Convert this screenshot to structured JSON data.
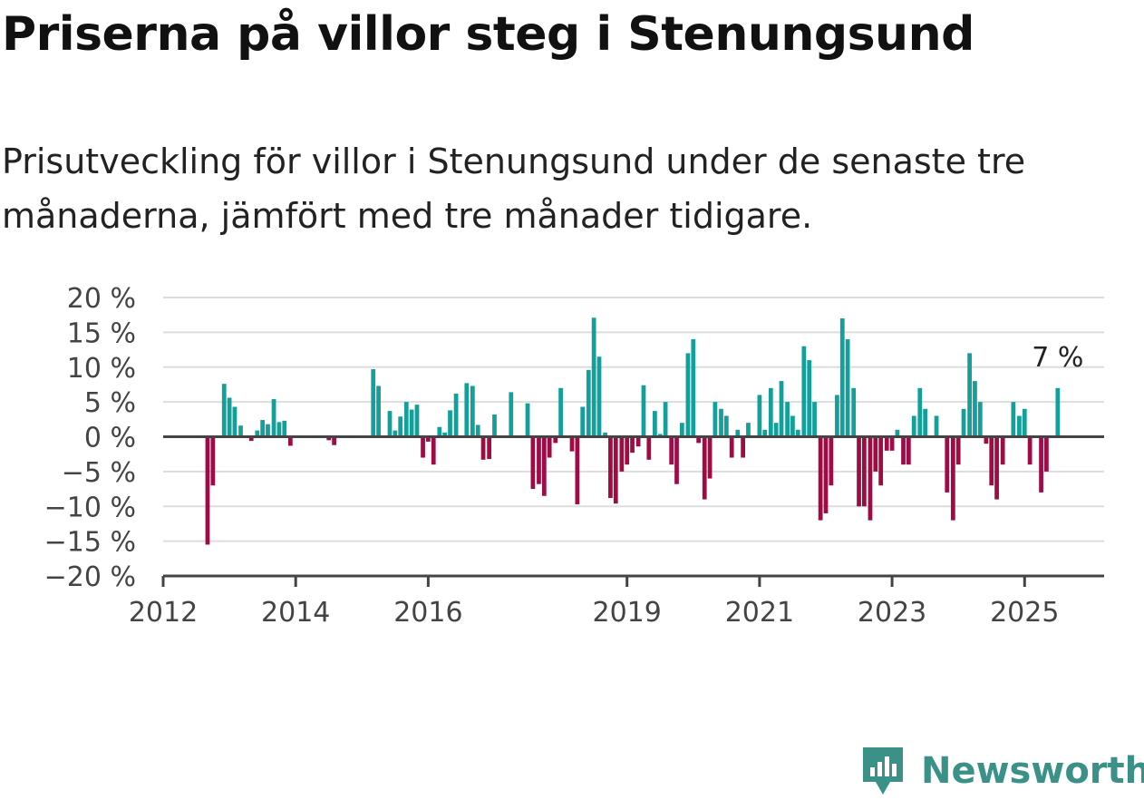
{
  "title": "Priserna på villor steg i Stenungsund",
  "subtitle": "Prisutveckling för villor i Stenungsund under de senaste tre månaderna, jämfört med tre månader tidigare.",
  "brand": {
    "name": "Newsworthy",
    "icon": "newsworthy-logo-icon",
    "color": "#3a9188"
  },
  "colors": {
    "positive": "#13a09a",
    "negative": "#9e0b45",
    "zero_line": "#444444",
    "grid": "#dddddd"
  },
  "chart_data": {
    "type": "bar",
    "title": "",
    "xlabel": "",
    "ylabel": "",
    "ylim": [
      -20,
      20
    ],
    "xlim": [
      2012,
      2026.2
    ],
    "y_ticks": [
      20,
      15,
      10,
      5,
      0,
      -5,
      -10,
      -15,
      -20
    ],
    "y_tick_labels": [
      "20 %",
      "15 %",
      "10 %",
      "5 %",
      "0 %",
      "−5 %",
      "−10 %",
      "−15 %",
      "−20 %"
    ],
    "x_ticks": [
      2012,
      2014,
      2016,
      2019,
      2021,
      2023,
      2025
    ],
    "x_tick_labels": [
      "2012",
      "2014",
      "2016",
      "2019",
      "2021",
      "2023",
      "2025"
    ],
    "grid": true,
    "annotation": {
      "x": 2025.5,
      "text": "7 %"
    },
    "points": [
      {
        "x": 2012.67,
        "y": -15.5
      },
      {
        "x": 2012.75,
        "y": -7
      },
      {
        "x": 2012.92,
        "y": 7.6
      },
      {
        "x": 2013.0,
        "y": 5.6
      },
      {
        "x": 2013.08,
        "y": 4.3
      },
      {
        "x": 2013.17,
        "y": 1.6
      },
      {
        "x": 2013.33,
        "y": -0.6
      },
      {
        "x": 2013.42,
        "y": 0.9
      },
      {
        "x": 2013.5,
        "y": 2.4
      },
      {
        "x": 2013.58,
        "y": 1.8
      },
      {
        "x": 2013.67,
        "y": 5.4
      },
      {
        "x": 2013.75,
        "y": 2.1
      },
      {
        "x": 2013.83,
        "y": 2.3
      },
      {
        "x": 2013.92,
        "y": -1.3
      },
      {
        "x": 2014.5,
        "y": -0.5
      },
      {
        "x": 2014.58,
        "y": -1.2
      },
      {
        "x": 2015.17,
        "y": 9.7
      },
      {
        "x": 2015.25,
        "y": 7.3
      },
      {
        "x": 2015.42,
        "y": 3.7
      },
      {
        "x": 2015.5,
        "y": 0.9
      },
      {
        "x": 2015.58,
        "y": 2.9
      },
      {
        "x": 2015.67,
        "y": 5.0
      },
      {
        "x": 2015.75,
        "y": 3.9
      },
      {
        "x": 2015.83,
        "y": 4.6
      },
      {
        "x": 2015.92,
        "y": -3.0
      },
      {
        "x": 2016.0,
        "y": -0.7
      },
      {
        "x": 2016.08,
        "y": -4.0
      },
      {
        "x": 2016.17,
        "y": 1.4
      },
      {
        "x": 2016.25,
        "y": 0.6
      },
      {
        "x": 2016.33,
        "y": 3.8
      },
      {
        "x": 2016.42,
        "y": 6.2
      },
      {
        "x": 2016.58,
        "y": 7.7
      },
      {
        "x": 2016.67,
        "y": 7.3
      },
      {
        "x": 2016.75,
        "y": 1.7
      },
      {
        "x": 2016.83,
        "y": -3.3
      },
      {
        "x": 2016.92,
        "y": -3.2
      },
      {
        "x": 2017.0,
        "y": 3.2
      },
      {
        "x": 2017.25,
        "y": 6.4
      },
      {
        "x": 2017.5,
        "y": 4.8
      },
      {
        "x": 2017.58,
        "y": -7.5
      },
      {
        "x": 2017.67,
        "y": -6.8
      },
      {
        "x": 2017.75,
        "y": -8.5
      },
      {
        "x": 2017.83,
        "y": -3.0
      },
      {
        "x": 2017.92,
        "y": -0.9
      },
      {
        "x": 2018.0,
        "y": 7.0
      },
      {
        "x": 2018.17,
        "y": -2.1
      },
      {
        "x": 2018.25,
        "y": -9.7
      },
      {
        "x": 2018.33,
        "y": 4.3
      },
      {
        "x": 2018.42,
        "y": 9.6
      },
      {
        "x": 2018.5,
        "y": 17.1
      },
      {
        "x": 2018.58,
        "y": 11.5
      },
      {
        "x": 2018.67,
        "y": 0.6
      },
      {
        "x": 2018.75,
        "y": -8.8
      },
      {
        "x": 2018.83,
        "y": -9.6
      },
      {
        "x": 2018.92,
        "y": -5.0
      },
      {
        "x": 2019.0,
        "y": -4.0
      },
      {
        "x": 2019.08,
        "y": -2.3
      },
      {
        "x": 2019.17,
        "y": -1.4
      },
      {
        "x": 2019.25,
        "y": 7.4
      },
      {
        "x": 2019.33,
        "y": -3.3
      },
      {
        "x": 2019.42,
        "y": 3.7
      },
      {
        "x": 2019.5,
        "y": 0.4
      },
      {
        "x": 2019.58,
        "y": 5.0
      },
      {
        "x": 2019.67,
        "y": -4.0
      },
      {
        "x": 2019.75,
        "y": -6.8
      },
      {
        "x": 2019.83,
        "y": 2.0
      },
      {
        "x": 2019.92,
        "y": 12.0
      },
      {
        "x": 2020.0,
        "y": 14.0
      },
      {
        "x": 2020.08,
        "y": -0.9
      },
      {
        "x": 2020.17,
        "y": -9.0
      },
      {
        "x": 2020.25,
        "y": -6.0
      },
      {
        "x": 2020.33,
        "y": 5.0
      },
      {
        "x": 2020.42,
        "y": 4.0
      },
      {
        "x": 2020.5,
        "y": 3.0
      },
      {
        "x": 2020.58,
        "y": -3.0
      },
      {
        "x": 2020.67,
        "y": 1.0
      },
      {
        "x": 2020.75,
        "y": -3.0
      },
      {
        "x": 2020.83,
        "y": 2.0
      },
      {
        "x": 2021.0,
        "y": 6.0
      },
      {
        "x": 2021.08,
        "y": 1.0
      },
      {
        "x": 2021.17,
        "y": 7.0
      },
      {
        "x": 2021.25,
        "y": 2.0
      },
      {
        "x": 2021.33,
        "y": 8.0
      },
      {
        "x": 2021.42,
        "y": 5.0
      },
      {
        "x": 2021.5,
        "y": 3.0
      },
      {
        "x": 2021.58,
        "y": 1.0
      },
      {
        "x": 2021.67,
        "y": 13.0
      },
      {
        "x": 2021.75,
        "y": 11.0
      },
      {
        "x": 2021.83,
        "y": 5.0
      },
      {
        "x": 2021.92,
        "y": -12.0
      },
      {
        "x": 2022.0,
        "y": -11.0
      },
      {
        "x": 2022.08,
        "y": -7.0
      },
      {
        "x": 2022.17,
        "y": 6.0
      },
      {
        "x": 2022.25,
        "y": 17.0
      },
      {
        "x": 2022.33,
        "y": 14.0
      },
      {
        "x": 2022.42,
        "y": 7.0
      },
      {
        "x": 2022.5,
        "y": -10.0
      },
      {
        "x": 2022.58,
        "y": -10.0
      },
      {
        "x": 2022.67,
        "y": -12.0
      },
      {
        "x": 2022.75,
        "y": -5.0
      },
      {
        "x": 2022.83,
        "y": -7.0
      },
      {
        "x": 2022.92,
        "y": -2.0
      },
      {
        "x": 2023.0,
        "y": -2.0
      },
      {
        "x": 2023.08,
        "y": 1.0
      },
      {
        "x": 2023.17,
        "y": -4.0
      },
      {
        "x": 2023.25,
        "y": -4.0
      },
      {
        "x": 2023.33,
        "y": 3.0
      },
      {
        "x": 2023.42,
        "y": 7.0
      },
      {
        "x": 2023.5,
        "y": 4.0
      },
      {
        "x": 2023.67,
        "y": 3.0
      },
      {
        "x": 2023.83,
        "y": -8.0
      },
      {
        "x": 2023.92,
        "y": -12.0
      },
      {
        "x": 2024.0,
        "y": -4.0
      },
      {
        "x": 2024.08,
        "y": 4.0
      },
      {
        "x": 2024.17,
        "y": 12.0
      },
      {
        "x": 2024.25,
        "y": 8.0
      },
      {
        "x": 2024.33,
        "y": 5.0
      },
      {
        "x": 2024.42,
        "y": -1.0
      },
      {
        "x": 2024.5,
        "y": -7.0
      },
      {
        "x": 2024.58,
        "y": -9.0
      },
      {
        "x": 2024.67,
        "y": -4.0
      },
      {
        "x": 2024.83,
        "y": 5.0
      },
      {
        "x": 2024.92,
        "y": 3.0
      },
      {
        "x": 2025.0,
        "y": 4.0
      },
      {
        "x": 2025.08,
        "y": -4.0
      },
      {
        "x": 2025.25,
        "y": -8.0
      },
      {
        "x": 2025.33,
        "y": -5.0
      },
      {
        "x": 2025.5,
        "y": 7.0
      }
    ]
  }
}
